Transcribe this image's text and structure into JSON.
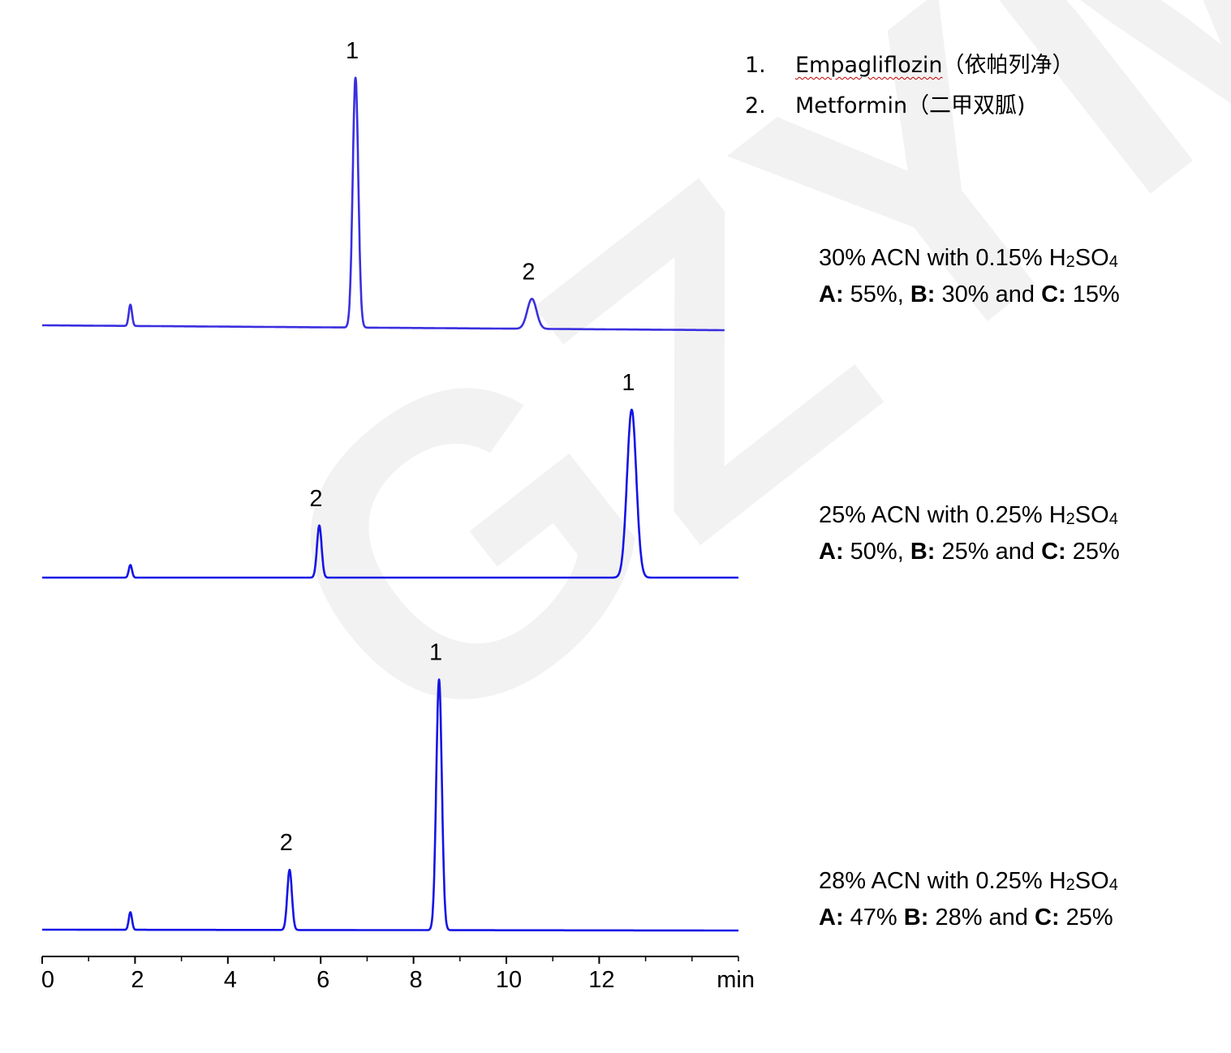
{
  "watermark": "GZYM",
  "legend": [
    {
      "num": "1.",
      "name": "Empagliflozin",
      "cn": "（依帕列净）"
    },
    {
      "num": "2.",
      "name": "Metformin",
      "cn": "（二甲双胍)"
    }
  ],
  "conditions": [
    {
      "line1_a": "30% ACN with 0.15% H",
      "line1_sub": "2",
      "line1_b": "SO",
      "line1_sub2": "4",
      "A_label": "A:",
      "A_val": " 55%,",
      "B_label": "B:",
      "B_val": " 30% and",
      "C_label": "C:",
      "C_val": " 15%"
    },
    {
      "line1_a": "25% ACN with 0.25% H",
      "line1_sub": "2",
      "line1_b": "SO",
      "line1_sub2": "4",
      "A_label": "A:",
      "A_val": " 50%,",
      "B_label": "B:",
      "B_val": " 25% and",
      "C_label": "C:",
      "C_val": " 25%"
    },
    {
      "line1_a": "28% ACN with 0.25% H",
      "line1_sub": "2",
      "line1_b": "SO",
      "line1_sub2": "4",
      "A_label": "A:",
      "A_val": " 47%",
      "B_label": "B:",
      "B_val": " 28% and",
      "C_label": "C:",
      "C_val": " 25%"
    }
  ],
  "chart_data": {
    "type": "line",
    "xlabel": "min",
    "xlim": [
      0,
      15
    ],
    "x_ticks": [
      0,
      2,
      4,
      6,
      8,
      10,
      12
    ],
    "minor_ticks": [
      1,
      3,
      5,
      7,
      9,
      11,
      13,
      14,
      15
    ],
    "tick_labels": [
      "0",
      "2",
      "4",
      "6",
      "8",
      "10",
      "12"
    ],
    "colors": {
      "trace_top": "#3a2fe0",
      "trace": "#1414e6"
    },
    "series": [
      {
        "xmax": 14.7,
        "peaks": [
          {
            "label": "",
            "rt": 1.9,
            "height": 0.085,
            "width": 0.035
          },
          {
            "label": "1",
            "rt": 6.75,
            "height": 1.0,
            "width": 0.06
          },
          {
            "label": "2",
            "rt": 10.55,
            "height": 0.12,
            "width": 0.1
          }
        ]
      },
      {
        "xmax": 15.0,
        "peaks": [
          {
            "label": "",
            "rt": 1.9,
            "height": 0.075,
            "width": 0.035
          },
          {
            "label": "2",
            "rt": 5.97,
            "height": 0.31,
            "width": 0.05
          },
          {
            "label": "1",
            "rt": 12.7,
            "height": 1.0,
            "width": 0.1
          }
        ]
      },
      {
        "xmax": 15.0,
        "peaks": [
          {
            "label": "",
            "rt": 1.9,
            "height": 0.07,
            "width": 0.035
          },
          {
            "label": "2",
            "rt": 5.33,
            "height": 0.24,
            "width": 0.05
          },
          {
            "label": "1",
            "rt": 8.55,
            "height": 1.0,
            "width": 0.06
          }
        ]
      }
    ]
  }
}
